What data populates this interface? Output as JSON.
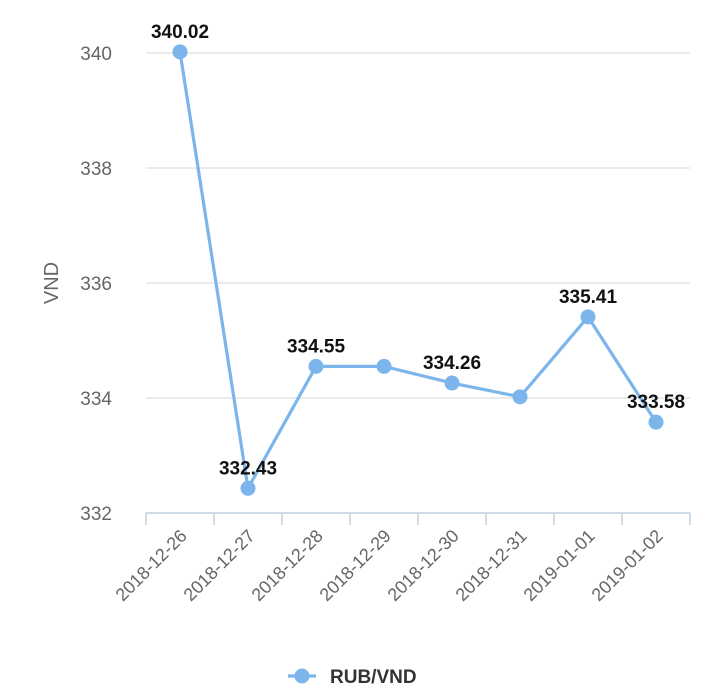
{
  "chart_data": {
    "type": "line",
    "title": "",
    "xlabel": "",
    "ylabel": "VND",
    "categories": [
      "2018-12-26",
      "2018-12-27",
      "2018-12-28",
      "2018-12-29",
      "2018-12-30",
      "2018-12-31",
      "2019-01-01",
      "2019-01-02"
    ],
    "series": [
      {
        "name": "RUB/VND",
        "values": [
          340.02,
          332.43,
          334.55,
          334.55,
          334.26,
          334.02,
          335.41,
          333.58
        ],
        "labels": [
          "340.02",
          "332.43",
          "334.55",
          "",
          "334.26",
          "",
          "335.41",
          "333.58"
        ],
        "color": "#7cb5ec"
      }
    ],
    "ylim": [
      332,
      341
    ],
    "yticks": [
      332,
      334,
      336,
      338,
      340
    ],
    "grid": true,
    "legend": "bottom-center"
  }
}
